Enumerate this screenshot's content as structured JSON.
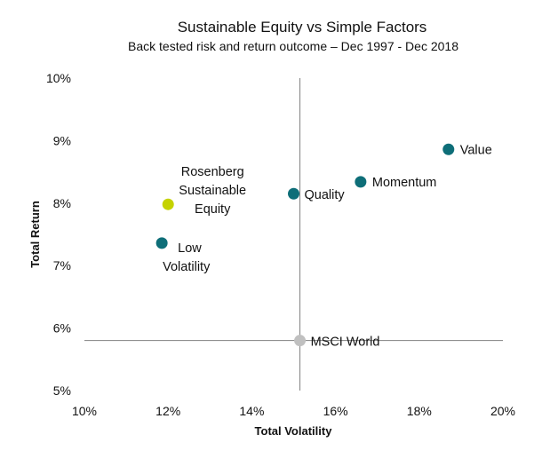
{
  "chart_data": {
    "type": "scatter",
    "title": "Sustainable Equity vs Simple Factors",
    "subtitle": "Back tested risk and return outcome – Dec 1997 - Dec 2018",
    "xlabel": "Total Volatility",
    "ylabel": "Total Return",
    "xlim": [
      10,
      20
    ],
    "ylim": [
      5,
      10
    ],
    "x_ticks": [
      "10%",
      "12%",
      "14%",
      "16%",
      "18%",
      "20%"
    ],
    "y_ticks": [
      "5%",
      "6%",
      "7%",
      "8%",
      "9%",
      "10%"
    ],
    "grid": false,
    "reference_lines": {
      "x": 15.15,
      "y": 5.8
    },
    "points": [
      {
        "label": [
          "Value"
        ],
        "x": 18.7,
        "y": 8.86,
        "color": "#0e6e78"
      },
      {
        "label": [
          "Momentum"
        ],
        "x": 16.6,
        "y": 8.34,
        "color": "#0e6e78"
      },
      {
        "label": [
          "Quality"
        ],
        "x": 15.0,
        "y": 8.15,
        "color": "#0e6e78"
      },
      {
        "label": [
          "Rosenberg",
          "Sustainable",
          "Equity"
        ],
        "x": 12.0,
        "y": 7.98,
        "color": "#c5d200"
      },
      {
        "label": [
          "Low",
          "Volatility"
        ],
        "x": 11.85,
        "y": 7.36,
        "color": "#0e6e78"
      },
      {
        "label": [
          "MSCI World"
        ],
        "x": 15.15,
        "y": 5.8,
        "color": "#c0c0c0"
      }
    ]
  }
}
